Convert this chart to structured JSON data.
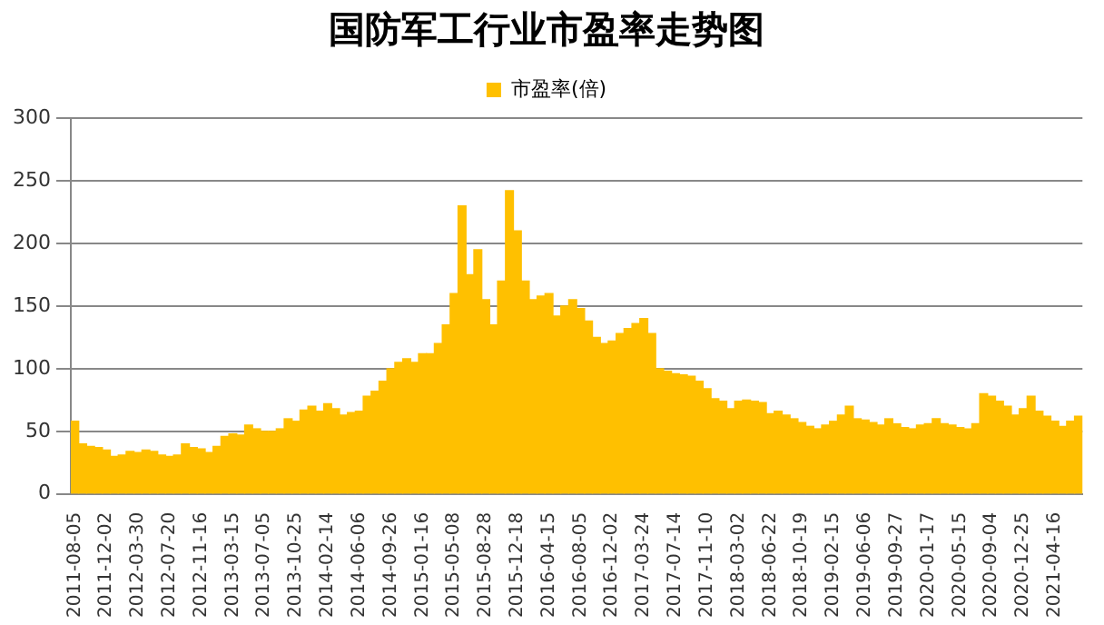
{
  "chart_data": {
    "type": "bar",
    "title": "国防军工行业市盈率走势图",
    "categories": [
      "2011-08-05",
      null,
      null,
      null,
      "2011-12-02",
      null,
      null,
      null,
      "2012-03-30",
      null,
      null,
      null,
      "2012-07-20",
      null,
      null,
      null,
      "2012-11-16",
      null,
      null,
      null,
      "2013-03-15",
      null,
      null,
      null,
      "2013-07-05",
      null,
      null,
      null,
      "2013-10-25",
      null,
      null,
      null,
      "2014-02-14",
      null,
      null,
      null,
      "2014-06-06",
      null,
      null,
      null,
      "2014-09-26",
      null,
      null,
      null,
      "2015-01-16",
      null,
      null,
      null,
      "2015-05-08",
      null,
      null,
      null,
      "2015-08-28",
      null,
      null,
      null,
      "2015-12-18",
      null,
      null,
      null,
      "2016-04-15",
      null,
      null,
      null,
      "2016-08-05",
      null,
      null,
      null,
      "2016-12-02",
      null,
      null,
      null,
      "2017-03-24",
      null,
      null,
      null,
      "2017-07-14",
      null,
      null,
      null,
      "2017-11-10",
      null,
      null,
      null,
      "2018-03-02",
      null,
      null,
      null,
      "2018-06-22",
      null,
      null,
      null,
      "2018-10-19",
      null,
      null,
      null,
      "2019-02-15",
      null,
      null,
      null,
      "2019-06-06",
      null,
      null,
      null,
      "2019-09-27",
      null,
      null,
      null,
      "2020-01-17",
      null,
      null,
      null,
      "2020-05-15",
      null,
      null,
      null,
      "2020-09-04",
      null,
      null,
      null,
      "2020-12-25",
      null,
      null,
      null,
      "2021-04-16",
      null,
      null,
      null
    ],
    "series": [
      {
        "name": "市盈率(倍)",
        "color": "#ffc000",
        "values": [
          58,
          40,
          38,
          37,
          35,
          30,
          31,
          34,
          33,
          35,
          34,
          31,
          30,
          31,
          40,
          37,
          36,
          33,
          38,
          46,
          48,
          47,
          55,
          52,
          50,
          50,
          52,
          60,
          58,
          67,
          70,
          66,
          72,
          68,
          63,
          65,
          66,
          78,
          82,
          90,
          100,
          105,
          108,
          105,
          112,
          112,
          120,
          135,
          160,
          230,
          175,
          195,
          155,
          135,
          170,
          242,
          210,
          170,
          155,
          158,
          160,
          142,
          150,
          155,
          148,
          138,
          125,
          120,
          122,
          128,
          132,
          136,
          140,
          128,
          100,
          98,
          96,
          95,
          94,
          90,
          84,
          76,
          74,
          68,
          74,
          75,
          74,
          73,
          64,
          66,
          63,
          60,
          57,
          54,
          52,
          55,
          58,
          63,
          70,
          60,
          59,
          57,
          55,
          60,
          56,
          53,
          52,
          55,
          56,
          60,
          56,
          55,
          53,
          52,
          56,
          80,
          78,
          74,
          70,
          63,
          68,
          78,
          66,
          62,
          58,
          54,
          58,
          62
        ]
      }
    ],
    "ylim": [
      0,
      300
    ],
    "yticks": [
      0,
      50,
      100,
      150,
      200,
      250,
      300
    ],
    "grid": "y",
    "legend": "top"
  }
}
